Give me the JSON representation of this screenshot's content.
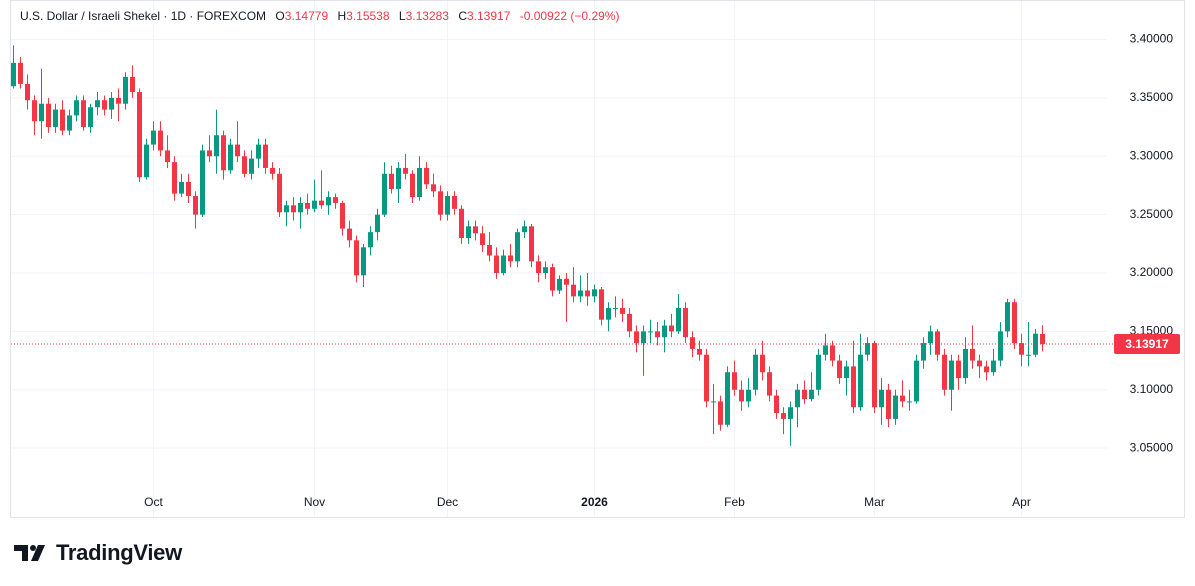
{
  "header": {
    "symbol": "U.S. Dollar / Israeli Shekel · 1D · FOREXCOM",
    "open_label": "O",
    "high_label": "H",
    "low_label": "L",
    "close_label": "C",
    "change_label": "-0.00922 (−0.29%)"
  },
  "watermark": "TradingView",
  "chart_data": {
    "type": "candlestick",
    "up_color": "#089981",
    "down_color": "#f23645",
    "grid": true,
    "ylim": [
      2.991,
      3.433
    ],
    "yticks": [
      {
        "value": 3.05,
        "label": "3.05000"
      },
      {
        "value": 3.1,
        "label": "3.10000"
      },
      {
        "value": 3.15,
        "label": "3.15000"
      },
      {
        "value": 3.2,
        "label": "3.20000"
      },
      {
        "value": 3.25,
        "label": "3.25000"
      },
      {
        "value": 3.3,
        "label": "3.30000"
      },
      {
        "value": 3.35,
        "label": "3.35000"
      },
      {
        "value": 3.4,
        "label": "3.40000"
      }
    ],
    "categories": [
      null,
      null,
      null,
      null,
      null,
      null,
      null,
      null,
      null,
      null,
      null,
      null,
      null,
      null,
      null,
      null,
      null,
      null,
      null,
      null,
      "Oct",
      null,
      null,
      null,
      null,
      null,
      null,
      null,
      null,
      null,
      null,
      null,
      null,
      null,
      null,
      null,
      null,
      null,
      null,
      null,
      null,
      null,
      null,
      "Nov",
      null,
      null,
      null,
      null,
      null,
      null,
      null,
      null,
      null,
      null,
      null,
      null,
      null,
      null,
      null,
      null,
      null,
      null,
      "Dec",
      null,
      null,
      null,
      null,
      null,
      null,
      null,
      null,
      null,
      null,
      null,
      null,
      null,
      null,
      null,
      null,
      null,
      null,
      null,
      null,
      "2026",
      null,
      null,
      null,
      null,
      null,
      null,
      null,
      null,
      null,
      null,
      null,
      null,
      null,
      null,
      null,
      null,
      null,
      null,
      null,
      "Feb",
      null,
      null,
      null,
      null,
      null,
      null,
      null,
      null,
      null,
      null,
      null,
      null,
      null,
      null,
      null,
      null,
      null,
      null,
      null,
      "Mar",
      null,
      null,
      null,
      null,
      null,
      null,
      null,
      null,
      null,
      null,
      null,
      null,
      null,
      null,
      null,
      null,
      null,
      null,
      null,
      null,
      "Apr",
      null,
      null,
      null
    ],
    "ohlc": [
      [
        3.36,
        3.395,
        3.358,
        3.38
      ],
      [
        3.38,
        3.385,
        3.358,
        3.362
      ],
      [
        3.362,
        3.37,
        3.34,
        3.348
      ],
      [
        3.348,
        3.352,
        3.318,
        3.33
      ],
      [
        3.33,
        3.375,
        3.315,
        3.345
      ],
      [
        3.345,
        3.35,
        3.32,
        3.325
      ],
      [
        3.325,
        3.345,
        3.32,
        3.34
      ],
      [
        3.34,
        3.348,
        3.318,
        3.322
      ],
      [
        3.322,
        3.34,
        3.318,
        3.335
      ],
      [
        3.335,
        3.352,
        3.33,
        3.348
      ],
      [
        3.348,
        3.352,
        3.322,
        3.325
      ],
      [
        3.325,
        3.345,
        3.32,
        3.342
      ],
      [
        3.342,
        3.355,
        3.335,
        3.348
      ],
      [
        3.348,
        3.352,
        3.335,
        3.34
      ],
      [
        3.34,
        3.355,
        3.332,
        3.35
      ],
      [
        3.35,
        3.358,
        3.33,
        3.345
      ],
      [
        3.345,
        3.372,
        3.34,
        3.368
      ],
      [
        3.368,
        3.378,
        3.35,
        3.355
      ],
      [
        3.355,
        3.358,
        3.278,
        3.282
      ],
      [
        3.282,
        3.315,
        3.28,
        3.31
      ],
      [
        3.31,
        3.33,
        3.305,
        3.322
      ],
      [
        3.322,
        3.33,
        3.3,
        3.305
      ],
      [
        3.305,
        3.318,
        3.29,
        3.295
      ],
      [
        3.295,
        3.3,
        3.262,
        3.268
      ],
      [
        3.268,
        3.285,
        3.265,
        3.278
      ],
      [
        3.278,
        3.285,
        3.26,
        3.266
      ],
      [
        3.266,
        3.27,
        3.238,
        3.25
      ],
      [
        3.25,
        3.31,
        3.248,
        3.305
      ],
      [
        3.305,
        3.318,
        3.295,
        3.3
      ],
      [
        3.3,
        3.34,
        3.285,
        3.318
      ],
      [
        3.318,
        3.322,
        3.28,
        3.288
      ],
      [
        3.288,
        3.315,
        3.285,
        3.31
      ],
      [
        3.31,
        3.33,
        3.295,
        3.3
      ],
      [
        3.3,
        3.305,
        3.282,
        3.285
      ],
      [
        3.285,
        3.305,
        3.28,
        3.298
      ],
      [
        3.298,
        3.315,
        3.29,
        3.31
      ],
      [
        3.31,
        3.315,
        3.285,
        3.29
      ],
      [
        3.29,
        3.295,
        3.28,
        3.285
      ],
      [
        3.285,
        3.29,
        3.248,
        3.252
      ],
      [
        3.252,
        3.262,
        3.24,
        3.258
      ],
      [
        3.258,
        3.265,
        3.245,
        3.252
      ],
      [
        3.252,
        3.265,
        3.238,
        3.26
      ],
      [
        3.26,
        3.268,
        3.25,
        3.255
      ],
      [
        3.255,
        3.28,
        3.252,
        3.262
      ],
      [
        3.262,
        3.288,
        3.255,
        3.258
      ],
      [
        3.258,
        3.27,
        3.25,
        3.265
      ],
      [
        3.265,
        3.268,
        3.255,
        3.26
      ],
      [
        3.26,
        3.262,
        3.232,
        3.238
      ],
      [
        3.238,
        3.245,
        3.222,
        3.228
      ],
      [
        3.228,
        3.232,
        3.192,
        3.198
      ],
      [
        3.198,
        3.225,
        3.188,
        3.222
      ],
      [
        3.222,
        3.24,
        3.215,
        3.235
      ],
      [
        3.235,
        3.255,
        3.228,
        3.25
      ],
      [
        3.25,
        3.295,
        3.248,
        3.285
      ],
      [
        3.285,
        3.292,
        3.268,
        3.272
      ],
      [
        3.272,
        3.295,
        3.26,
        3.29
      ],
      [
        3.29,
        3.302,
        3.28,
        3.285
      ],
      [
        3.285,
        3.288,
        3.26,
        3.265
      ],
      [
        3.265,
        3.3,
        3.262,
        3.29
      ],
      [
        3.29,
        3.295,
        3.272,
        3.276
      ],
      [
        3.276,
        3.285,
        3.265,
        3.27
      ],
      [
        3.27,
        3.275,
        3.245,
        3.25
      ],
      [
        3.25,
        3.27,
        3.245,
        3.266
      ],
      [
        3.266,
        3.27,
        3.25,
        3.255
      ],
      [
        3.255,
        3.258,
        3.225,
        3.23
      ],
      [
        3.23,
        3.245,
        3.225,
        3.24
      ],
      [
        3.24,
        3.245,
        3.228,
        3.234
      ],
      [
        3.234,
        3.24,
        3.218,
        3.224
      ],
      [
        3.224,
        3.235,
        3.21,
        3.215
      ],
      [
        3.215,
        3.222,
        3.195,
        3.2
      ],
      [
        3.2,
        3.22,
        3.198,
        3.215
      ],
      [
        3.215,
        3.225,
        3.205,
        3.21
      ],
      [
        3.21,
        3.238,
        3.205,
        3.235
      ],
      [
        3.235,
        3.245,
        3.23,
        3.24
      ],
      [
        3.24,
        3.242,
        3.205,
        3.21
      ],
      [
        3.21,
        3.215,
        3.192,
        3.2
      ],
      [
        3.2,
        3.21,
        3.195,
        3.205
      ],
      [
        3.205,
        3.208,
        3.18,
        3.185
      ],
      [
        3.185,
        3.198,
        3.182,
        3.195
      ],
      [
        3.195,
        3.2,
        3.158,
        3.19
      ],
      [
        3.19,
        3.205,
        3.175,
        3.18
      ],
      [
        3.18,
        3.198,
        3.175,
        3.185
      ],
      [
        3.185,
        3.2,
        3.172,
        3.18
      ],
      [
        3.18,
        3.19,
        3.175,
        3.186
      ],
      [
        3.186,
        3.188,
        3.155,
        3.16
      ],
      [
        3.16,
        3.175,
        3.15,
        3.17
      ],
      [
        3.17,
        3.18,
        3.162,
        3.17
      ],
      [
        3.17,
        3.178,
        3.158,
        3.165
      ],
      [
        3.165,
        3.17,
        3.145,
        3.15
      ],
      [
        3.15,
        3.155,
        3.132,
        3.14
      ],
      [
        3.14,
        3.155,
        3.112,
        3.15
      ],
      [
        3.15,
        3.16,
        3.14,
        3.15
      ],
      [
        3.15,
        3.158,
        3.138,
        3.145
      ],
      [
        3.145,
        3.16,
        3.132,
        3.155
      ],
      [
        3.155,
        3.165,
        3.145,
        3.15
      ],
      [
        3.15,
        3.182,
        3.148,
        3.17
      ],
      [
        3.17,
        3.175,
        3.14,
        3.145
      ],
      [
        3.145,
        3.15,
        3.128,
        3.135
      ],
      [
        3.135,
        3.142,
        3.125,
        3.13
      ],
      [
        3.13,
        3.135,
        3.085,
        3.09
      ],
      [
        3.09,
        3.105,
        3.062,
        3.09
      ],
      [
        3.09,
        3.095,
        3.065,
        3.07
      ],
      [
        3.07,
        3.12,
        3.068,
        3.115
      ],
      [
        3.115,
        3.125,
        3.095,
        3.1
      ],
      [
        3.1,
        3.108,
        3.082,
        3.09
      ],
      [
        3.09,
        3.11,
        3.085,
        3.1
      ],
      [
        3.1,
        3.135,
        3.095,
        3.13
      ],
      [
        3.13,
        3.142,
        3.108,
        3.115
      ],
      [
        3.115,
        3.12,
        3.09,
        3.095
      ],
      [
        3.095,
        3.1,
        3.075,
        3.08
      ],
      [
        3.08,
        3.085,
        3.062,
        3.075
      ],
      [
        3.075,
        3.09,
        3.052,
        3.085
      ],
      [
        3.085,
        3.105,
        3.068,
        3.1
      ],
      [
        3.1,
        3.108,
        3.088,
        3.092
      ],
      [
        3.092,
        3.115,
        3.09,
        3.1
      ],
      [
        3.1,
        3.135,
        3.095,
        3.13
      ],
      [
        3.13,
        3.148,
        3.125,
        3.138
      ],
      [
        3.138,
        3.142,
        3.12,
        3.125
      ],
      [
        3.125,
        3.13,
        3.105,
        3.11
      ],
      [
        3.11,
        3.125,
        3.095,
        3.12
      ],
      [
        3.12,
        3.142,
        3.08,
        3.085
      ],
      [
        3.085,
        3.148,
        3.082,
        3.13
      ],
      [
        3.13,
        3.145,
        3.125,
        3.14
      ],
      [
        3.14,
        3.142,
        3.08,
        3.085
      ],
      [
        3.085,
        3.11,
        3.07,
        3.1
      ],
      [
        3.1,
        3.105,
        3.068,
        3.075
      ],
      [
        3.075,
        3.1,
        3.07,
        3.095
      ],
      [
        3.095,
        3.108,
        3.085,
        3.09
      ],
      [
        3.09,
        3.1,
        3.082,
        3.09
      ],
      [
        3.09,
        3.13,
        3.088,
        3.125
      ],
      [
        3.125,
        3.145,
        3.118,
        3.14
      ],
      [
        3.14,
        3.155,
        3.13,
        3.15
      ],
      [
        3.15,
        3.152,
        3.125,
        3.13
      ],
      [
        3.13,
        3.135,
        3.095,
        3.1
      ],
      [
        3.1,
        3.13,
        3.082,
        3.125
      ],
      [
        3.125,
        3.13,
        3.1,
        3.11
      ],
      [
        3.11,
        3.145,
        3.105,
        3.135
      ],
      [
        3.135,
        3.155,
        3.118,
        3.125
      ],
      [
        3.125,
        3.13,
        3.11,
        3.12
      ],
      [
        3.12,
        3.125,
        3.108,
        3.115
      ],
      [
        3.115,
        3.135,
        3.112,
        3.125
      ],
      [
        3.125,
        3.158,
        3.12,
        3.15
      ],
      [
        3.15,
        3.178,
        3.145,
        3.175
      ],
      [
        3.175,
        3.178,
        3.135,
        3.14
      ],
      [
        3.14,
        3.148,
        3.12,
        3.13
      ],
      [
        3.13,
        3.158,
        3.12,
        3.13
      ],
      [
        3.13,
        3.152,
        3.128,
        3.148
      ],
      [
        3.14779,
        3.15538,
        3.13283,
        3.13917
      ]
    ]
  }
}
